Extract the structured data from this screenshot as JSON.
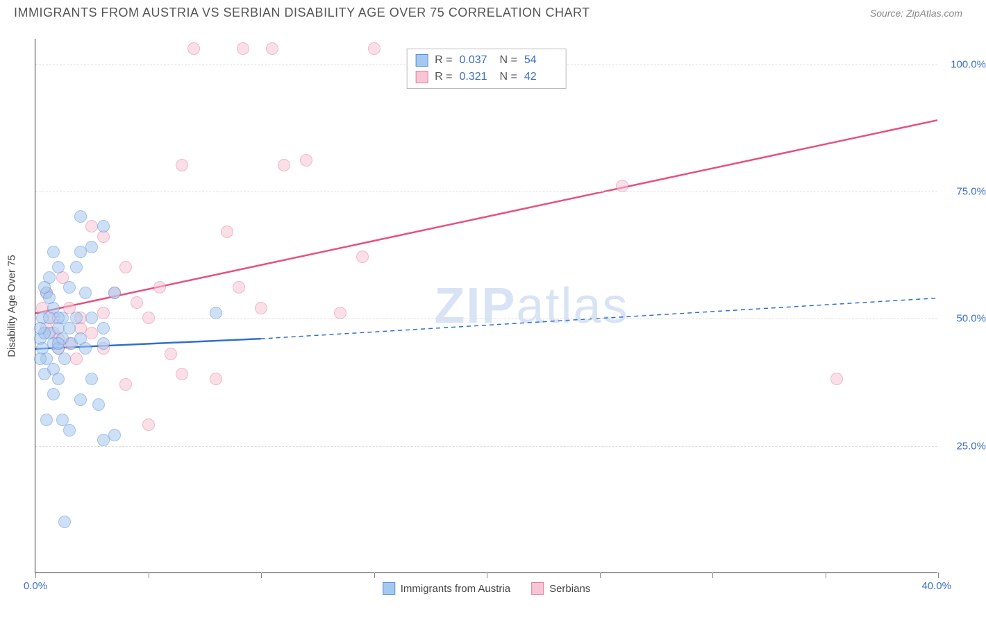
{
  "header": {
    "title": "IMMIGRANTS FROM AUSTRIA VS SERBIAN DISABILITY AGE OVER 75 CORRELATION CHART",
    "source": "Source: ZipAtlas.com"
  },
  "chart": {
    "type": "scatter",
    "y_axis_label": "Disability Age Over 75",
    "xlim": [
      0,
      40
    ],
    "ylim": [
      0,
      105
    ],
    "y_ticks": [
      25,
      50,
      75,
      100
    ],
    "y_tick_labels": [
      "25.0%",
      "50.0%",
      "75.0%",
      "100.0%"
    ],
    "x_ticks": [
      0,
      5,
      10,
      15,
      20,
      25,
      30,
      35,
      40
    ],
    "x_tick_labels": {
      "left": "0.0%",
      "right": "40.0%"
    },
    "grid_color": "#dddddd",
    "background_color": "#ffffff",
    "series": {
      "blue": {
        "label": "Immigrants from Austria",
        "color_fill": "#a5c8f0",
        "color_stroke": "#5a8fd6",
        "line_color": "#2f6fd0",
        "r_value": "0.037",
        "n_value": "54",
        "trend": {
          "x1": 0,
          "y1": 44,
          "x2": 10,
          "y2": 46,
          "dash_x2": 40,
          "dash_y2": 54
        },
        "points": [
          [
            0.2,
            46
          ],
          [
            0.3,
            50
          ],
          [
            0.3,
            44
          ],
          [
            0.5,
            55
          ],
          [
            0.5,
            42
          ],
          [
            0.6,
            47
          ],
          [
            0.6,
            58
          ],
          [
            0.8,
            45
          ],
          [
            0.8,
            40
          ],
          [
            0.8,
            52
          ],
          [
            1.0,
            48
          ],
          [
            1.0,
            60
          ],
          [
            1.0,
            38
          ],
          [
            1.0,
            44
          ],
          [
            1.2,
            50
          ],
          [
            1.2,
            46
          ],
          [
            1.2,
            30
          ],
          [
            1.3,
            42
          ],
          [
            1.5,
            56
          ],
          [
            1.5,
            48
          ],
          [
            1.5,
            28
          ],
          [
            1.6,
            45
          ],
          [
            1.8,
            50
          ],
          [
            1.8,
            60
          ],
          [
            2.0,
            70
          ],
          [
            2.0,
            63
          ],
          [
            2.0,
            46
          ],
          [
            2.0,
            34
          ],
          [
            2.2,
            55
          ],
          [
            2.2,
            44
          ],
          [
            2.5,
            50
          ],
          [
            2.5,
            38
          ],
          [
            2.5,
            64
          ],
          [
            2.8,
            33
          ],
          [
            3.0,
            48
          ],
          [
            3.0,
            26
          ],
          [
            3.0,
            68
          ],
          [
            3.0,
            45
          ],
          [
            3.5,
            27
          ],
          [
            3.5,
            55
          ],
          [
            1.3,
            10
          ],
          [
            0.8,
            35
          ],
          [
            0.8,
            63
          ],
          [
            1.0,
            50
          ],
          [
            1.0,
            45
          ],
          [
            0.4,
            47
          ],
          [
            0.4,
            39
          ],
          [
            0.6,
            54
          ],
          [
            0.6,
            50
          ],
          [
            0.2,
            48
          ],
          [
            0.2,
            42
          ],
          [
            8.0,
            51
          ],
          [
            0.5,
            30
          ],
          [
            0.4,
            56
          ]
        ]
      },
      "pink": {
        "label": "Serbians",
        "color_fill": "#f7c5d4",
        "color_stroke": "#e87ca0",
        "line_color": "#e84f7d",
        "r_value": "0.321",
        "n_value": "42",
        "trend": {
          "x1": 0,
          "y1": 51,
          "x2": 40,
          "y2": 89
        },
        "points": [
          [
            0.3,
            52
          ],
          [
            0.5,
            48
          ],
          [
            0.5,
            55
          ],
          [
            0.8,
            47
          ],
          [
            0.8,
            50
          ],
          [
            1.0,
            44
          ],
          [
            1.0,
            46
          ],
          [
            1.2,
            58
          ],
          [
            1.5,
            52
          ],
          [
            1.5,
            45
          ],
          [
            1.8,
            42
          ],
          [
            2.0,
            48
          ],
          [
            2.0,
            50
          ],
          [
            2.5,
            68
          ],
          [
            2.5,
            47
          ],
          [
            3.0,
            51
          ],
          [
            3.0,
            44
          ],
          [
            3.0,
            66
          ],
          [
            3.5,
            55
          ],
          [
            4.0,
            37
          ],
          [
            4.0,
            60
          ],
          [
            4.5,
            53
          ],
          [
            5.0,
            29
          ],
          [
            5.0,
            50
          ],
          [
            5.5,
            56
          ],
          [
            6.0,
            43
          ],
          [
            6.5,
            80
          ],
          [
            7.0,
            103
          ],
          [
            8.0,
            38
          ],
          [
            8.5,
            67
          ],
          [
            9.0,
            56
          ],
          [
            9.2,
            103
          ],
          [
            10.0,
            52
          ],
          [
            10.5,
            103
          ],
          [
            11.0,
            80
          ],
          [
            12.0,
            81
          ],
          [
            13.5,
            51
          ],
          [
            14.5,
            62
          ],
          [
            15.0,
            103
          ],
          [
            26.0,
            76
          ],
          [
            35.5,
            38
          ],
          [
            6.5,
            39
          ]
        ]
      }
    },
    "watermark": "ZIPatlas",
    "marker_radius": 9
  },
  "legend_stats": {
    "r_label": "R =",
    "n_label": "N ="
  }
}
